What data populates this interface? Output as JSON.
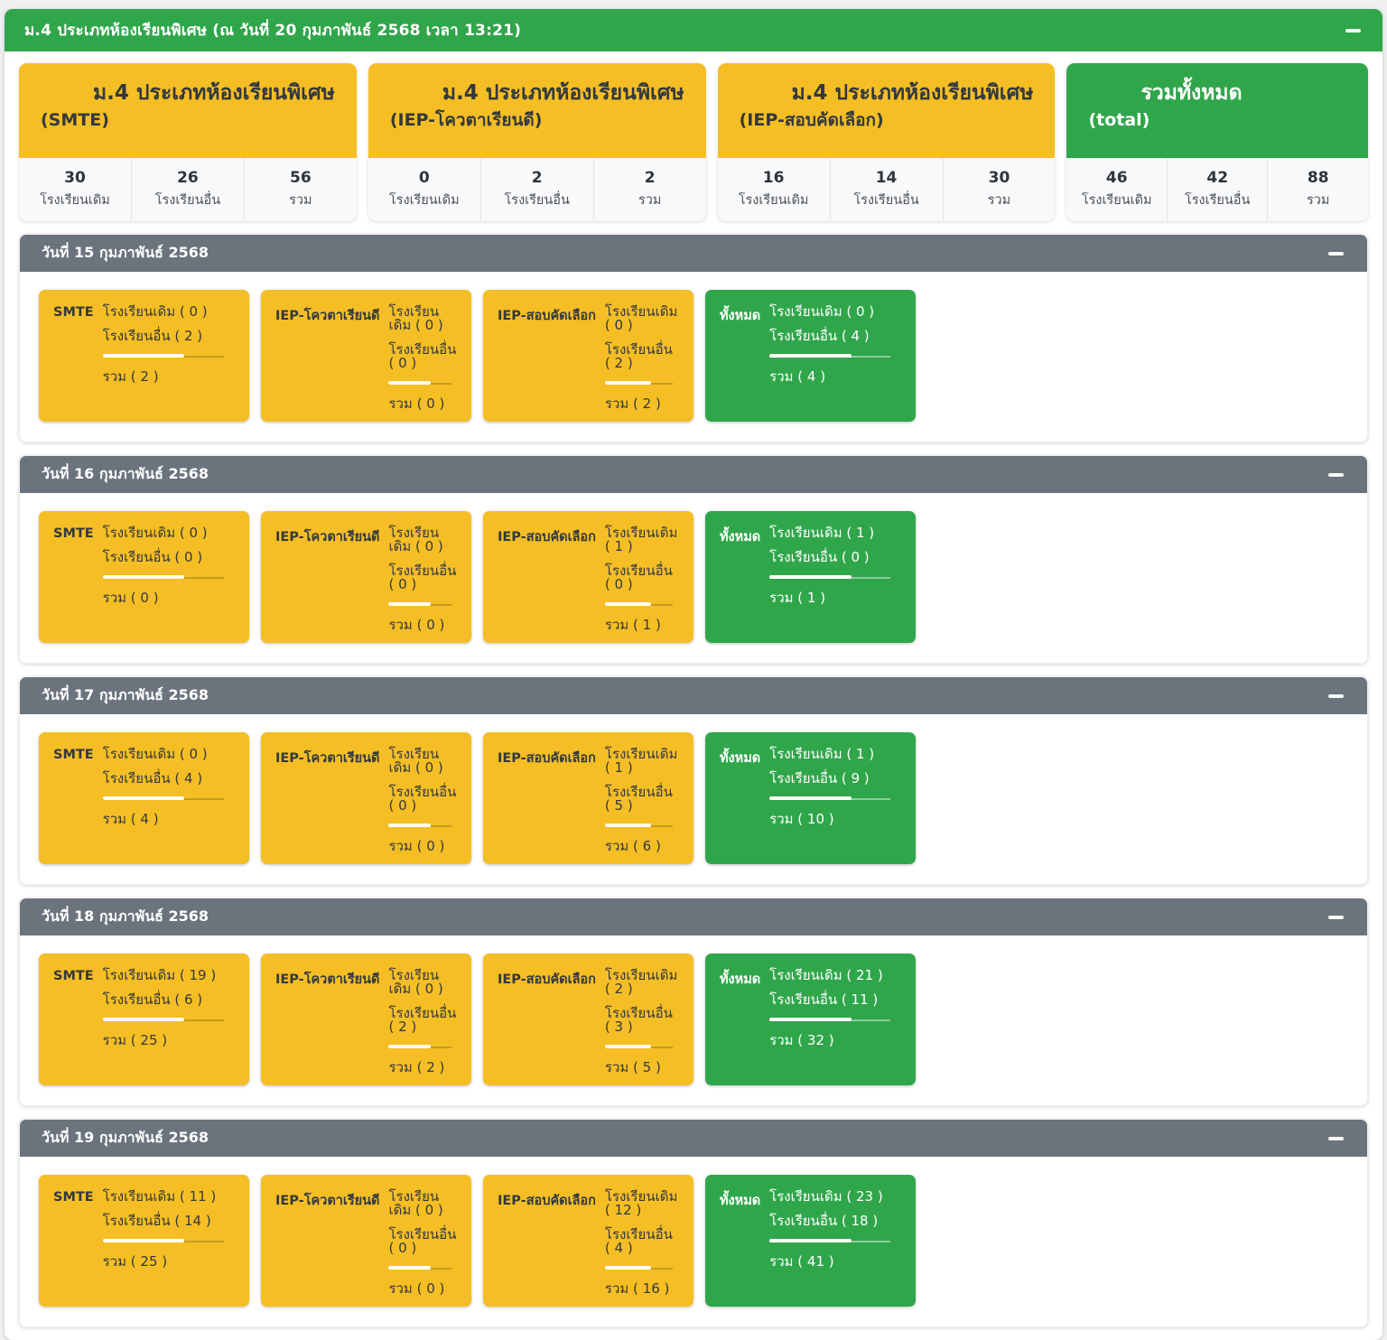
{
  "header": {
    "title": "ม.4 ประเภทห้องเรียนพิเศษ (ณ วันที่ 20 กุมภาพันธ์ 2568 เวลา 13:21)"
  },
  "colors": {
    "green": "#30A64B",
    "yellow": "#F5BE25",
    "gray_header": "#6B737D",
    "stats_bg": "#F8F9FA"
  },
  "stat_labels": {
    "old_school": "โรงเรียนเดิม",
    "other_school": "โรงเรียนอื่น",
    "total": "รวม"
  },
  "summary_cards": [
    {
      "title": "ม.4 ประเภทห้องเรียนพิเศษ",
      "subtitle": "(SMTE)",
      "theme": "yellow",
      "old": "30",
      "other": "26",
      "total": "56"
    },
    {
      "title": "ม.4 ประเภทห้องเรียนพิเศษ",
      "subtitle": "(IEP-โควตาเรียนดี)",
      "theme": "yellow",
      "old": "0",
      "other": "2",
      "total": "2"
    },
    {
      "title": "ม.4 ประเภทห้องเรียนพิเศษ",
      "subtitle": "(IEP-สอบคัดเลือก)",
      "theme": "yellow",
      "old": "16",
      "other": "14",
      "total": "30"
    },
    {
      "title": "รวมทั้งหมด",
      "subtitle": "(total)",
      "theme": "green",
      "old": "46",
      "other": "42",
      "total": "88"
    }
  ],
  "sections": [
    {
      "date_title": "วันที่ 15 กุมภาพันธ์ 2568",
      "cards": [
        {
          "label": "SMTE",
          "theme": "yellow",
          "line_old": "โรงเรียนเดิม ( 0 )",
          "line_other": "โรงเรียนอื่น ( 2 )",
          "line_total": "รวม ( 2 )"
        },
        {
          "label": "IEP-โควตาเรียนดี",
          "theme": "yellow",
          "line_old": "โรงเรียนเดิม ( 0 )",
          "line_other": "โรงเรียนอื่น ( 0 )",
          "line_total": "รวม ( 0 )"
        },
        {
          "label": "IEP-สอบคัดเลือก",
          "theme": "yellow",
          "line_old": "โรงเรียนเดิม ( 0 )",
          "line_other": "โรงเรียนอื่น ( 2 )",
          "line_total": "รวม ( 2 )"
        },
        {
          "label": "ทั้งหมด",
          "theme": "green",
          "line_old": "โรงเรียนเดิม ( 0 )",
          "line_other": "โรงเรียนอื่น ( 4 )",
          "line_total": "รวม ( 4 )"
        }
      ]
    },
    {
      "date_title": "วันที่ 16 กุมภาพันธ์ 2568",
      "cards": [
        {
          "label": "SMTE",
          "theme": "yellow",
          "line_old": "โรงเรียนเดิม ( 0 )",
          "line_other": "โรงเรียนอื่น ( 0 )",
          "line_total": "รวม ( 0 )"
        },
        {
          "label": "IEP-โควตาเรียนดี",
          "theme": "yellow",
          "line_old": "โรงเรียนเดิม ( 0 )",
          "line_other": "โรงเรียนอื่น ( 0 )",
          "line_total": "รวม ( 0 )"
        },
        {
          "label": "IEP-สอบคัดเลือก",
          "theme": "yellow",
          "line_old": "โรงเรียนเดิม ( 1 )",
          "line_other": "โรงเรียนอื่น ( 0 )",
          "line_total": "รวม ( 1 )"
        },
        {
          "label": "ทั้งหมด",
          "theme": "green",
          "line_old": "โรงเรียนเดิม ( 1 )",
          "line_other": "โรงเรียนอื่น ( 0 )",
          "line_total": "รวม ( 1 )"
        }
      ]
    },
    {
      "date_title": "วันที่ 17 กุมภาพันธ์ 2568",
      "cards": [
        {
          "label": "SMTE",
          "theme": "yellow",
          "line_old": "โรงเรียนเดิม ( 0 )",
          "line_other": "โรงเรียนอื่น ( 4 )",
          "line_total": "รวม ( 4 )"
        },
        {
          "label": "IEP-โควตาเรียนดี",
          "theme": "yellow",
          "line_old": "โรงเรียนเดิม ( 0 )",
          "line_other": "โรงเรียนอื่น ( 0 )",
          "line_total": "รวม ( 0 )"
        },
        {
          "label": "IEP-สอบคัดเลือก",
          "theme": "yellow",
          "line_old": "โรงเรียนเดิม ( 1 )",
          "line_other": "โรงเรียนอื่น ( 5 )",
          "line_total": "รวม ( 6 )"
        },
        {
          "label": "ทั้งหมด",
          "theme": "green",
          "line_old": "โรงเรียนเดิม ( 1 )",
          "line_other": "โรงเรียนอื่น ( 9 )",
          "line_total": "รวม ( 10 )"
        }
      ]
    },
    {
      "date_title": "วันที่ 18 กุมภาพันธ์ 2568",
      "cards": [
        {
          "label": "SMTE",
          "theme": "yellow",
          "line_old": "โรงเรียนเดิม ( 19 )",
          "line_other": "โรงเรียนอื่น ( 6 )",
          "line_total": "รวม ( 25 )"
        },
        {
          "label": "IEP-โควตาเรียนดี",
          "theme": "yellow",
          "line_old": "โรงเรียนเดิม ( 0 )",
          "line_other": "โรงเรียนอื่น ( 2 )",
          "line_total": "รวม ( 2 )"
        },
        {
          "label": "IEP-สอบคัดเลือก",
          "theme": "yellow",
          "line_old": "โรงเรียนเดิม ( 2 )",
          "line_other": "โรงเรียนอื่น ( 3 )",
          "line_total": "รวม ( 5 )"
        },
        {
          "label": "ทั้งหมด",
          "theme": "green",
          "line_old": "โรงเรียนเดิม ( 21 )",
          "line_other": "โรงเรียนอื่น ( 11 )",
          "line_total": "รวม ( 32 )"
        }
      ]
    },
    {
      "date_title": "วันที่ 19 กุมภาพันธ์ 2568",
      "cards": [
        {
          "label": "SMTE",
          "theme": "yellow",
          "line_old": "โรงเรียนเดิม ( 11 )",
          "line_other": "โรงเรียนอื่น ( 14 )",
          "line_total": "รวม ( 25 )"
        },
        {
          "label": "IEP-โควตาเรียนดี",
          "theme": "yellow",
          "line_old": "โรงเรียนเดิม ( 0 )",
          "line_other": "โรงเรียนอื่น ( 0 )",
          "line_total": "รวม ( 0 )"
        },
        {
          "label": "IEP-สอบคัดเลือก",
          "theme": "yellow",
          "line_old": "โรงเรียนเดิม ( 12 )",
          "line_other": "โรงเรียนอื่น ( 4 )",
          "line_total": "รวม ( 16 )"
        },
        {
          "label": "ทั้งหมด",
          "theme": "green",
          "line_old": "โรงเรียนเดิม ( 23 )",
          "line_other": "โรงเรียนอื่น ( 18 )",
          "line_total": "รวม ( 41 )"
        }
      ]
    }
  ]
}
